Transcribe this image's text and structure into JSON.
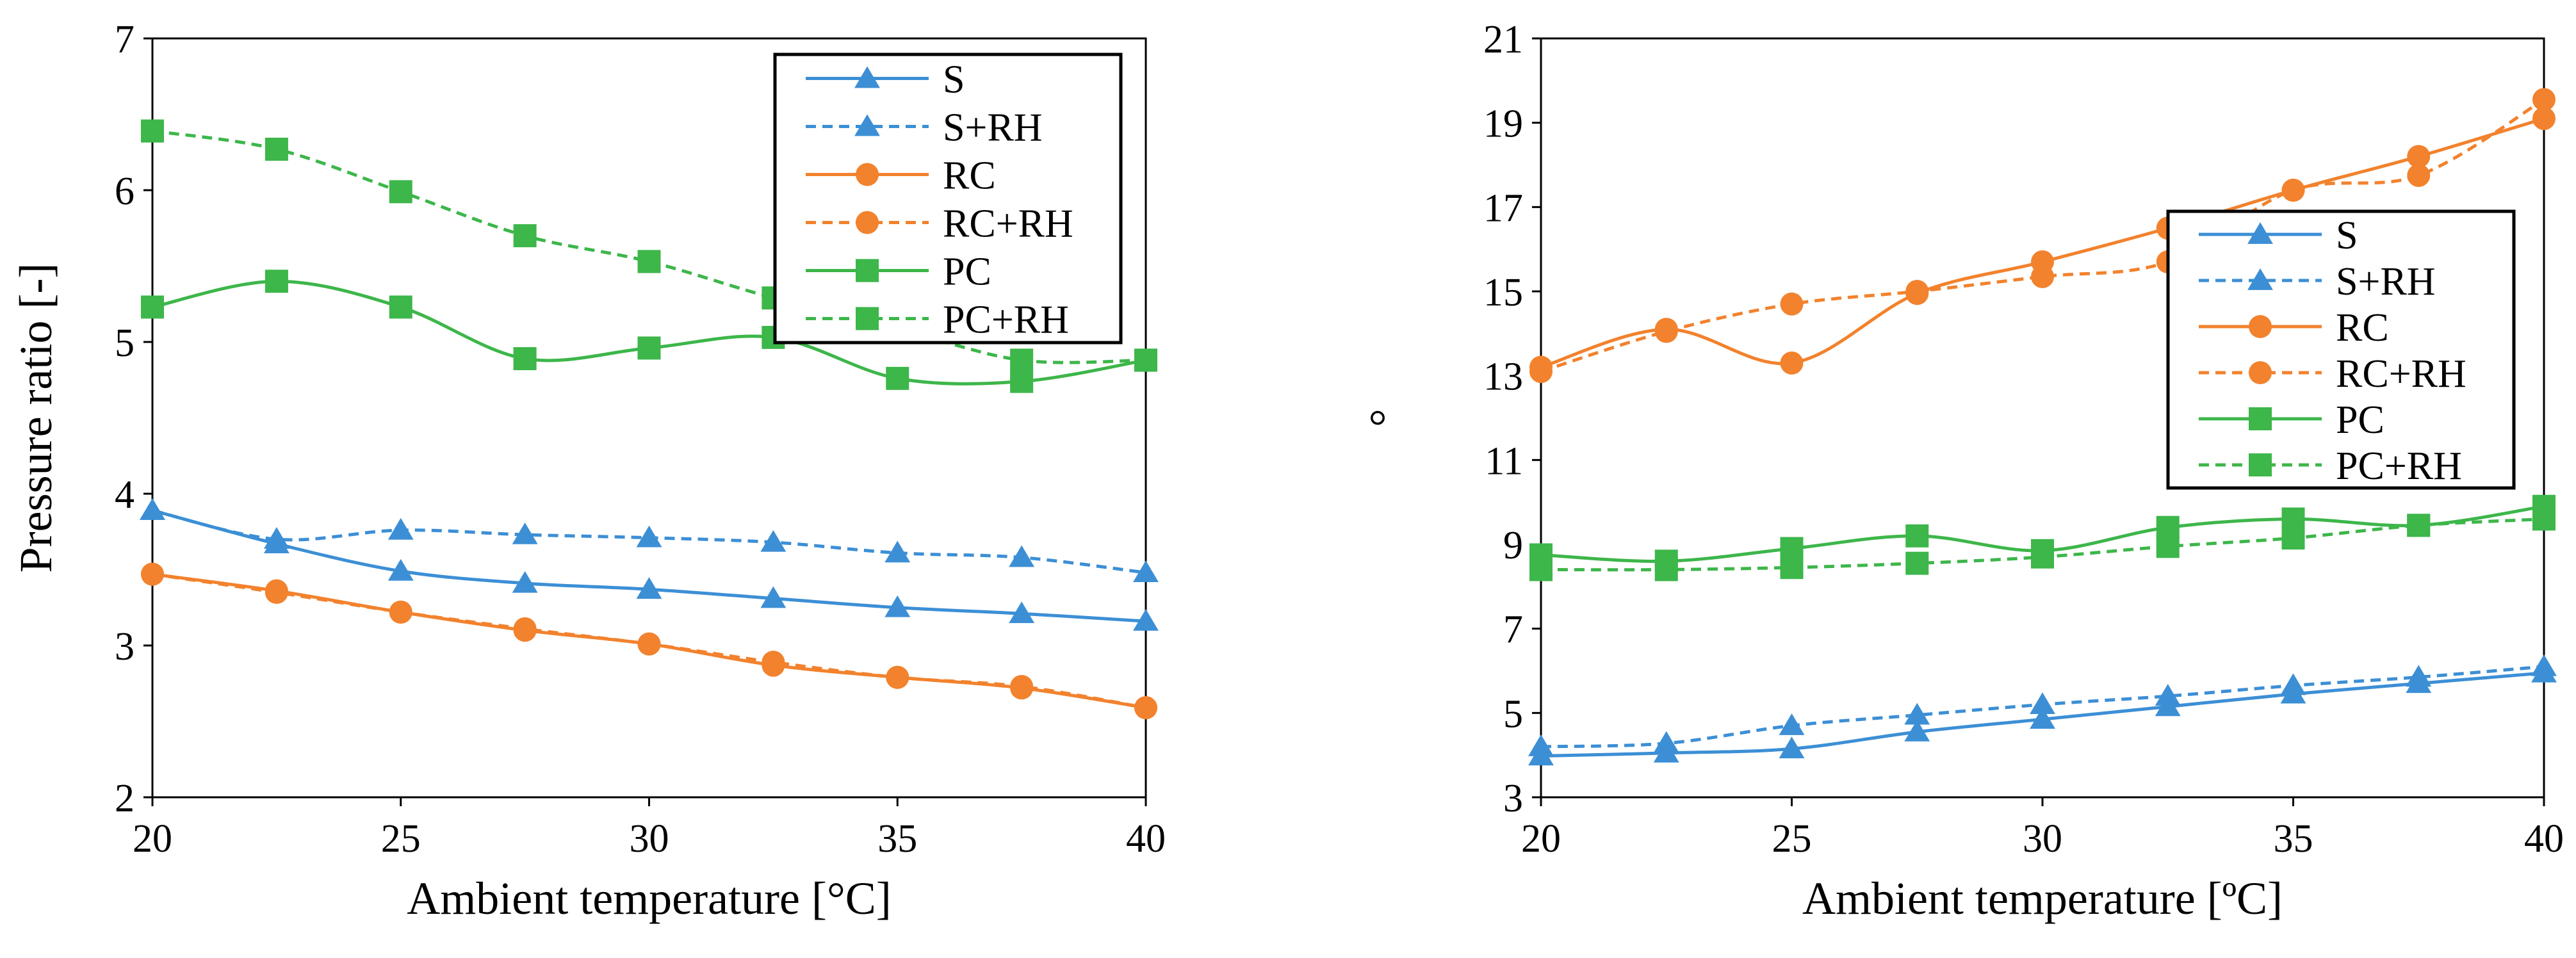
{
  "charts": [
    {
      "type": "line",
      "title": "",
      "xlabel": "Ambient temperature [°C]",
      "ylabel": "Pressure ratio [-]",
      "xlim": [
        20,
        40
      ],
      "ylim": [
        2,
        7
      ],
      "xticks": [
        20,
        25,
        30,
        35,
        40
      ],
      "yticks": [
        2,
        3,
        4,
        5,
        6,
        7
      ],
      "legend_position": "top-right",
      "x": [
        20,
        22.5,
        25,
        27.5,
        30,
        32.5,
        35,
        37.5,
        40
      ],
      "series": [
        {
          "name": "S",
          "color": "#3c8fd5",
          "dash": "solid",
          "marker": "triangle",
          "values": [
            3.89,
            3.67,
            3.49,
            3.41,
            3.37,
            3.31,
            3.25,
            3.21,
            3.16
          ]
        },
        {
          "name": "S+RH",
          "color": "#3c8fd5",
          "dash": "dashed",
          "marker": "triangle",
          "values": [
            3.89,
            3.7,
            3.76,
            3.73,
            3.71,
            3.68,
            3.61,
            3.58,
            3.48
          ]
        },
        {
          "name": "RC",
          "color": "#f2822d",
          "dash": "solid",
          "marker": "circle",
          "values": [
            3.47,
            3.36,
            3.22,
            3.1,
            3.01,
            2.87,
            2.79,
            2.72,
            2.59
          ]
        },
        {
          "name": "RC+RH",
          "color": "#f2822d",
          "dash": "dashed",
          "marker": "circle",
          "values": [
            3.47,
            3.35,
            3.22,
            3.11,
            3.01,
            2.89,
            2.79,
            2.73,
            2.59
          ]
        },
        {
          "name": "PC",
          "color": "#3db64a",
          "dash": "solid",
          "marker": "square",
          "values": [
            5.23,
            5.4,
            5.23,
            4.89,
            4.96,
            5.03,
            4.76,
            4.74,
            4.88
          ]
        },
        {
          "name": "PC+RH",
          "color": "#3db64a",
          "dash": "dashed",
          "marker": "square",
          "values": [
            6.39,
            6.27,
            5.99,
            5.7,
            5.53,
            5.29,
            5.09,
            4.88,
            4.88
          ]
        }
      ]
    },
    {
      "type": "line",
      "title": "",
      "xlabel": "Ambient temperature [ºC]",
      "ylabel": "°",
      "xlim": [
        20,
        40
      ],
      "ylim": [
        3,
        21
      ],
      "xticks": [
        20,
        25,
        30,
        35,
        40
      ],
      "yticks": [
        3,
        5,
        7,
        9,
        11,
        13,
        15,
        17,
        19,
        21
      ],
      "legend_position": "center-right",
      "x": [
        20,
        22.5,
        25,
        27.5,
        30,
        32.5,
        35,
        37.5,
        40
      ],
      "series": [
        {
          "name": "S",
          "color": "#3c8fd5",
          "dash": "solid",
          "marker": "triangle",
          "values": [
            3.98,
            4.05,
            4.15,
            4.55,
            4.85,
            5.15,
            5.45,
            5.7,
            5.95
          ]
        },
        {
          "name": "S+RH",
          "color": "#3c8fd5",
          "dash": "dashed",
          "marker": "triangle",
          "values": [
            4.2,
            4.28,
            4.7,
            4.95,
            5.2,
            5.4,
            5.65,
            5.85,
            6.1
          ]
        },
        {
          "name": "RC",
          "color": "#f2822d",
          "dash": "solid",
          "marker": "circle",
          "values": [
            13.2,
            14.1,
            13.3,
            14.95,
            15.7,
            16.5,
            17.4,
            18.2,
            19.1
          ]
        },
        {
          "name": "RC+RH",
          "color": "#f2822d",
          "dash": "dashed",
          "marker": "circle",
          "values": [
            13.1,
            14.05,
            14.7,
            15.0,
            15.35,
            15.7,
            17.4,
            17.75,
            19.55
          ]
        },
        {
          "name": "PC",
          "color": "#3db64a",
          "dash": "solid",
          "marker": "square",
          "values": [
            8.75,
            8.6,
            8.9,
            9.2,
            8.85,
            9.4,
            9.6,
            9.45,
            9.9
          ]
        },
        {
          "name": "PC+RH",
          "color": "#3db64a",
          "dash": "dashed",
          "marker": "square",
          "values": [
            8.4,
            8.4,
            8.45,
            8.55,
            8.7,
            8.95,
            9.15,
            9.45,
            9.6
          ]
        }
      ]
    }
  ]
}
